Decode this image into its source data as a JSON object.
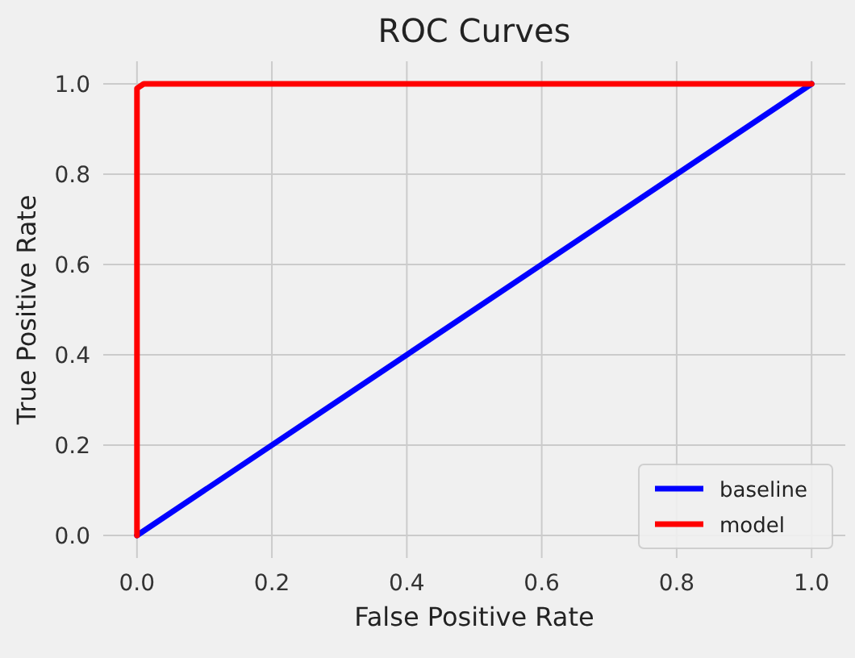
{
  "chart_data": {
    "type": "line",
    "title": "ROC Curves",
    "xlabel": "False Positive Rate",
    "ylabel": "True Positive Rate",
    "xlim": [
      -0.05,
      1.05
    ],
    "ylim": [
      -0.05,
      1.05
    ],
    "xticks": [
      {
        "value": 0,
        "label": "0.0"
      },
      0.2,
      0.4,
      0.6,
      0.8,
      {
        "value": 1,
        "label": "1.0"
      }
    ],
    "yticks": [
      {
        "value": 0,
        "label": "0.0"
      },
      0.2,
      0.4,
      0.6,
      0.8,
      {
        "value": 1,
        "label": "1.0"
      }
    ],
    "grid": true,
    "legend": "bottom right",
    "line_style": "solid",
    "series": [
      {
        "name": "baseline",
        "color": "#0000ff",
        "x": [
          0,
          1
        ],
        "values": [
          0,
          1
        ]
      },
      {
        "name": "model",
        "color": "#ff0000",
        "x": [
          0,
          0,
          0.01,
          1
        ],
        "values": [
          0,
          0.99,
          1,
          1
        ]
      }
    ]
  }
}
